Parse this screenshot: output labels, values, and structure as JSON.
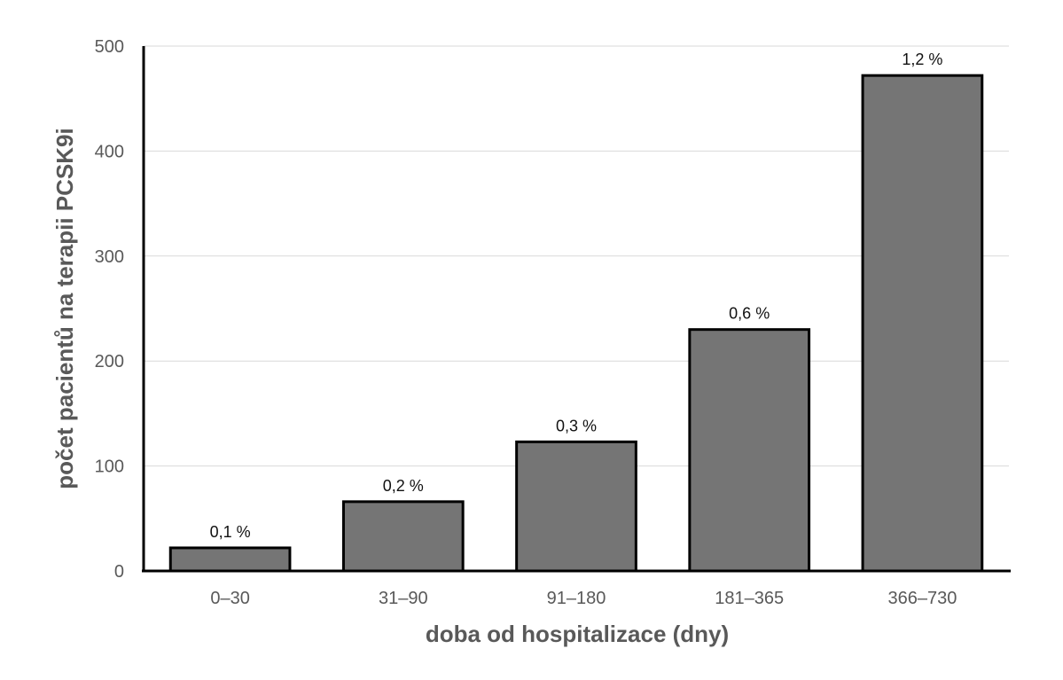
{
  "chart_data": {
    "type": "bar",
    "title": "",
    "xlabel": "doba od hospitalizace (dny)",
    "ylabel": "počet pacientů na terapii PCSK9i",
    "categories": [
      "0–30",
      "31–90",
      "91–180",
      "181–365",
      "366–730"
    ],
    "values": [
      22,
      66,
      123,
      230,
      472
    ],
    "data_labels": [
      "0,1 %",
      "0,2 %",
      "0,3 %",
      "0,6 %",
      "1,2 %"
    ],
    "ylim": [
      0,
      500
    ],
    "yticks": [
      0,
      100,
      200,
      300,
      400,
      500
    ],
    "grid": true,
    "legend": "none",
    "colors": {
      "bar_fill": "#757575",
      "bar_stroke": "#000000",
      "grid": "#d9d9d9",
      "tick_text": "#595959",
      "label_text": "#111111"
    }
  }
}
